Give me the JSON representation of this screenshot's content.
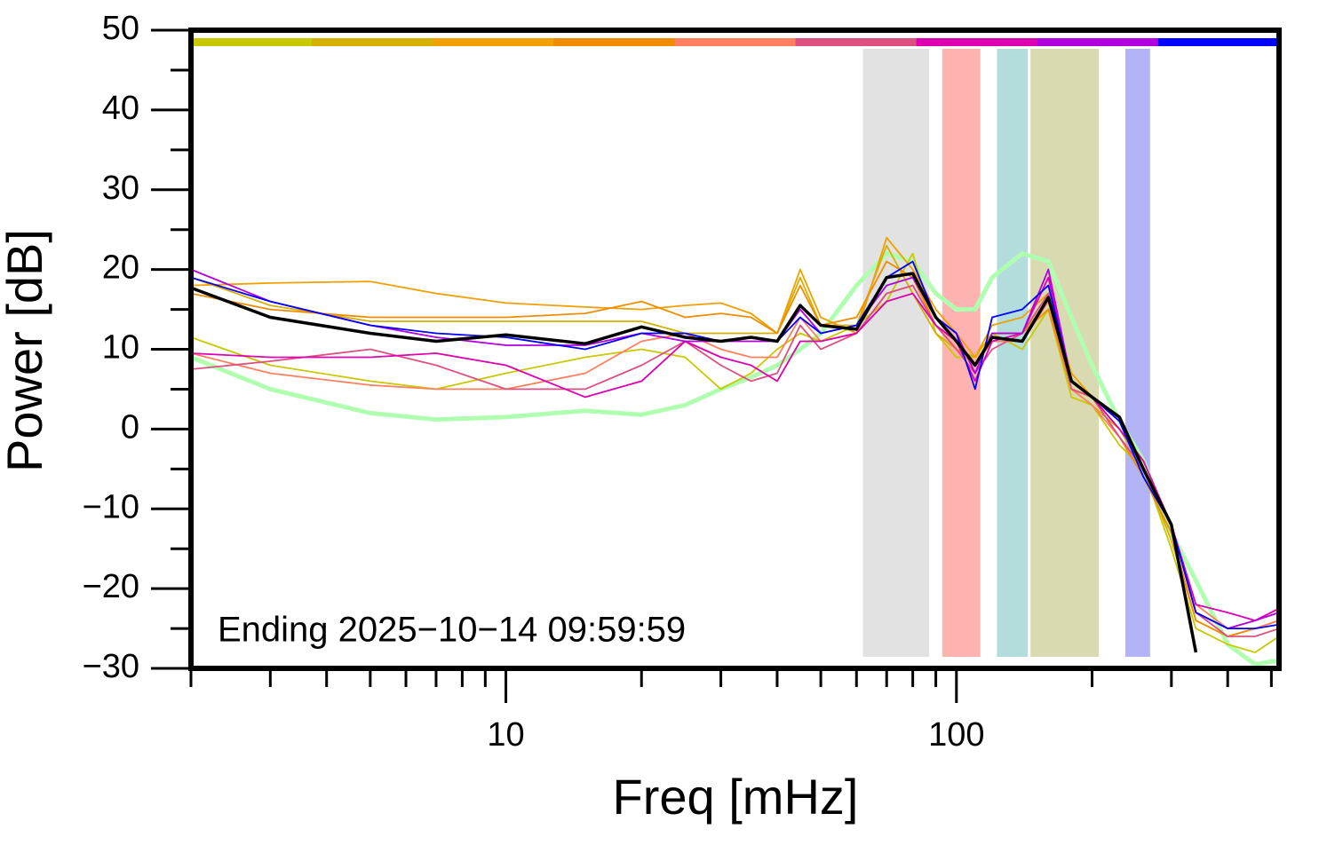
{
  "chart_data": {
    "type": "line",
    "xlabel": "Freq [mHz]",
    "ylabel": "Power [dB]",
    "annotation": "Ending 2025−10−14 09:59:59",
    "xscale": "log",
    "xlim": [
      2,
      520
    ],
    "ylim": [
      -30,
      50
    ],
    "xticks": [
      10,
      100
    ],
    "xminor_ticks": [
      2,
      3,
      4,
      5,
      6,
      7,
      8,
      9,
      20,
      30,
      40,
      50,
      60,
      70,
      80,
      90,
      200,
      300,
      400,
      500
    ],
    "yticks": [
      {
        "value": -30,
        "label": "−30"
      },
      {
        "value": -20,
        "label": "−20"
      },
      {
        "value": -10,
        "label": "−10"
      },
      0,
      10,
      20,
      30,
      40,
      50
    ],
    "yminor_ticks": [
      -25,
      -15,
      -5,
      5,
      15,
      25,
      35,
      45
    ],
    "bands": [
      {
        "xlim": [
          62,
          87
        ],
        "color": "#e2e2e2"
      },
      {
        "xlim": [
          93,
          113
        ],
        "color": "#ffb3b0"
      },
      {
        "xlim": [
          123,
          144
        ],
        "color": "#b3dcdc"
      },
      {
        "xlim": [
          146,
          207
        ],
        "color": "#dadab2"
      },
      {
        "xlim": [
          237,
          269
        ],
        "color": "#b3b3f8"
      }
    ],
    "x": [
      2,
      3,
      5,
      7,
      10,
      15,
      20,
      25,
      30,
      35,
      40,
      45,
      50,
      60,
      70,
      80,
      90,
      100,
      110,
      120,
      140,
      160,
      180,
      200,
      230,
      260,
      300,
      340,
      400,
      460,
      520
    ],
    "series": [
      {
        "color": "#b0ffb0",
        "line_width": 5,
        "values": [
          9,
          5,
          2,
          1.2,
          1.5,
          2.3,
          1.8,
          3,
          5,
          6.5,
          8,
          10,
          12,
          18,
          22,
          21,
          17,
          15,
          15,
          19,
          22,
          21,
          14,
          8,
          1,
          -4,
          -13,
          -19,
          -27,
          -29.5,
          -29
        ]
      },
      {
        "color": "#c8c800",
        "line_width": 1.8,
        "legend_bar": true,
        "values": [
          11.5,
          8,
          6,
          5,
          7,
          9,
          10,
          9,
          5,
          7,
          10,
          12,
          11,
          13,
          16,
          22,
          12,
          9,
          9,
          12,
          10,
          15,
          4,
          3,
          -2,
          -5,
          -15,
          -25,
          -27,
          -28,
          -26
        ]
      },
      {
        "color": "#d4b000",
        "line_width": 1.8,
        "legend_bar": true,
        "values": [
          19,
          15.5,
          13.5,
          13.5,
          13.5,
          13.5,
          13.5,
          12,
          12,
          12,
          12,
          19,
          13,
          13,
          23,
          17,
          12,
          10,
          9,
          12,
          12,
          16,
          5,
          3,
          0,
          -5,
          -14,
          -24,
          -26,
          -25,
          -24
        ]
      },
      {
        "color": "#f0a000",
        "line_width": 1.8,
        "legend_bar": true,
        "values": [
          18,
          18.3,
          18.5,
          17,
          15.8,
          15.3,
          15,
          15.5,
          15.8,
          14.5,
          12,
          20,
          14,
          12,
          24,
          20,
          15,
          12,
          9,
          13,
          14,
          17,
          7,
          4,
          0,
          -4,
          -12,
          -23,
          -25,
          -24,
          -23
        ]
      },
      {
        "color": "#f08c00",
        "line_width": 1.8,
        "legend_bar": true,
        "values": [
          17,
          15,
          14,
          14,
          14,
          14.5,
          16,
          14,
          14.5,
          14,
          12,
          18,
          13,
          14,
          21,
          19,
          13,
          11,
          8,
          12,
          12,
          15,
          5,
          4,
          -1,
          -6,
          -13,
          -24,
          -26,
          -25,
          -24
        ]
      },
      {
        "color": "#ff7f60",
        "line_width": 1.8,
        "legend_bar": true,
        "values": [
          9.5,
          7,
          5.5,
          5,
          5,
          7,
          11,
          12,
          10,
          9,
          9,
          14,
          11,
          12,
          17,
          18,
          13,
          10,
          8,
          11,
          11,
          16,
          5,
          3,
          -1,
          -5,
          -12,
          -22,
          -25,
          -25,
          -24
        ]
      },
      {
        "color": "#dd5080",
        "line_width": 1.8,
        "legend_bar": true,
        "values": [
          7.5,
          8.5,
          10,
          8,
          5,
          5,
          8,
          11,
          8,
          6,
          7,
          13,
          10,
          12,
          17,
          18,
          13,
          10,
          7,
          10,
          12,
          17,
          5,
          4,
          -1,
          -5,
          -12,
          -23,
          -26,
          -26,
          -25
        ]
      },
      {
        "color": "#dd00b0",
        "line_width": 1.8,
        "legend_bar": true,
        "values": [
          9.5,
          9,
          9,
          9.5,
          8,
          4,
          6,
          11,
          9,
          8,
          6,
          11,
          11,
          12,
          16,
          17,
          13,
          11,
          6,
          11,
          12,
          19,
          6,
          4,
          0,
          -4,
          -12,
          -22,
          -23,
          -24,
          -22.5
        ]
      },
      {
        "color": "#b000dd",
        "line_width": 1.8,
        "legend_bar": true,
        "values": [
          20,
          16,
          13,
          11.5,
          10.5,
          10.5,
          12,
          11,
          11,
          11,
          11,
          15,
          12,
          13,
          18,
          19,
          14,
          12,
          7,
          12,
          12,
          20,
          6,
          4,
          1,
          -5,
          -12,
          -23,
          -25,
          -24,
          -23
        ]
      },
      {
        "color": "#0000ff",
        "line_width": 1.8,
        "legend_bar": true,
        "values": [
          19,
          16,
          13,
          12,
          11.5,
          10,
          12,
          12,
          11,
          11.5,
          11,
          14,
          12,
          13,
          19,
          21,
          14,
          12,
          5,
          14,
          15,
          18,
          6,
          4,
          1,
          -6,
          -12,
          -23,
          -25,
          -25,
          -24.5
        ]
      },
      {
        "color": "#000000",
        "line_width": 3.5,
        "values": [
          17.7,
          14,
          12,
          11,
          11.8,
          10.7,
          12.8,
          11.5,
          11,
          11.5,
          11,
          15.5,
          13,
          12.5,
          19,
          19.5,
          14,
          11,
          8,
          11.5,
          11,
          16.5,
          6,
          4,
          1.5,
          -5,
          -12,
          -28,
          null,
          null,
          null
        ]
      }
    ]
  }
}
